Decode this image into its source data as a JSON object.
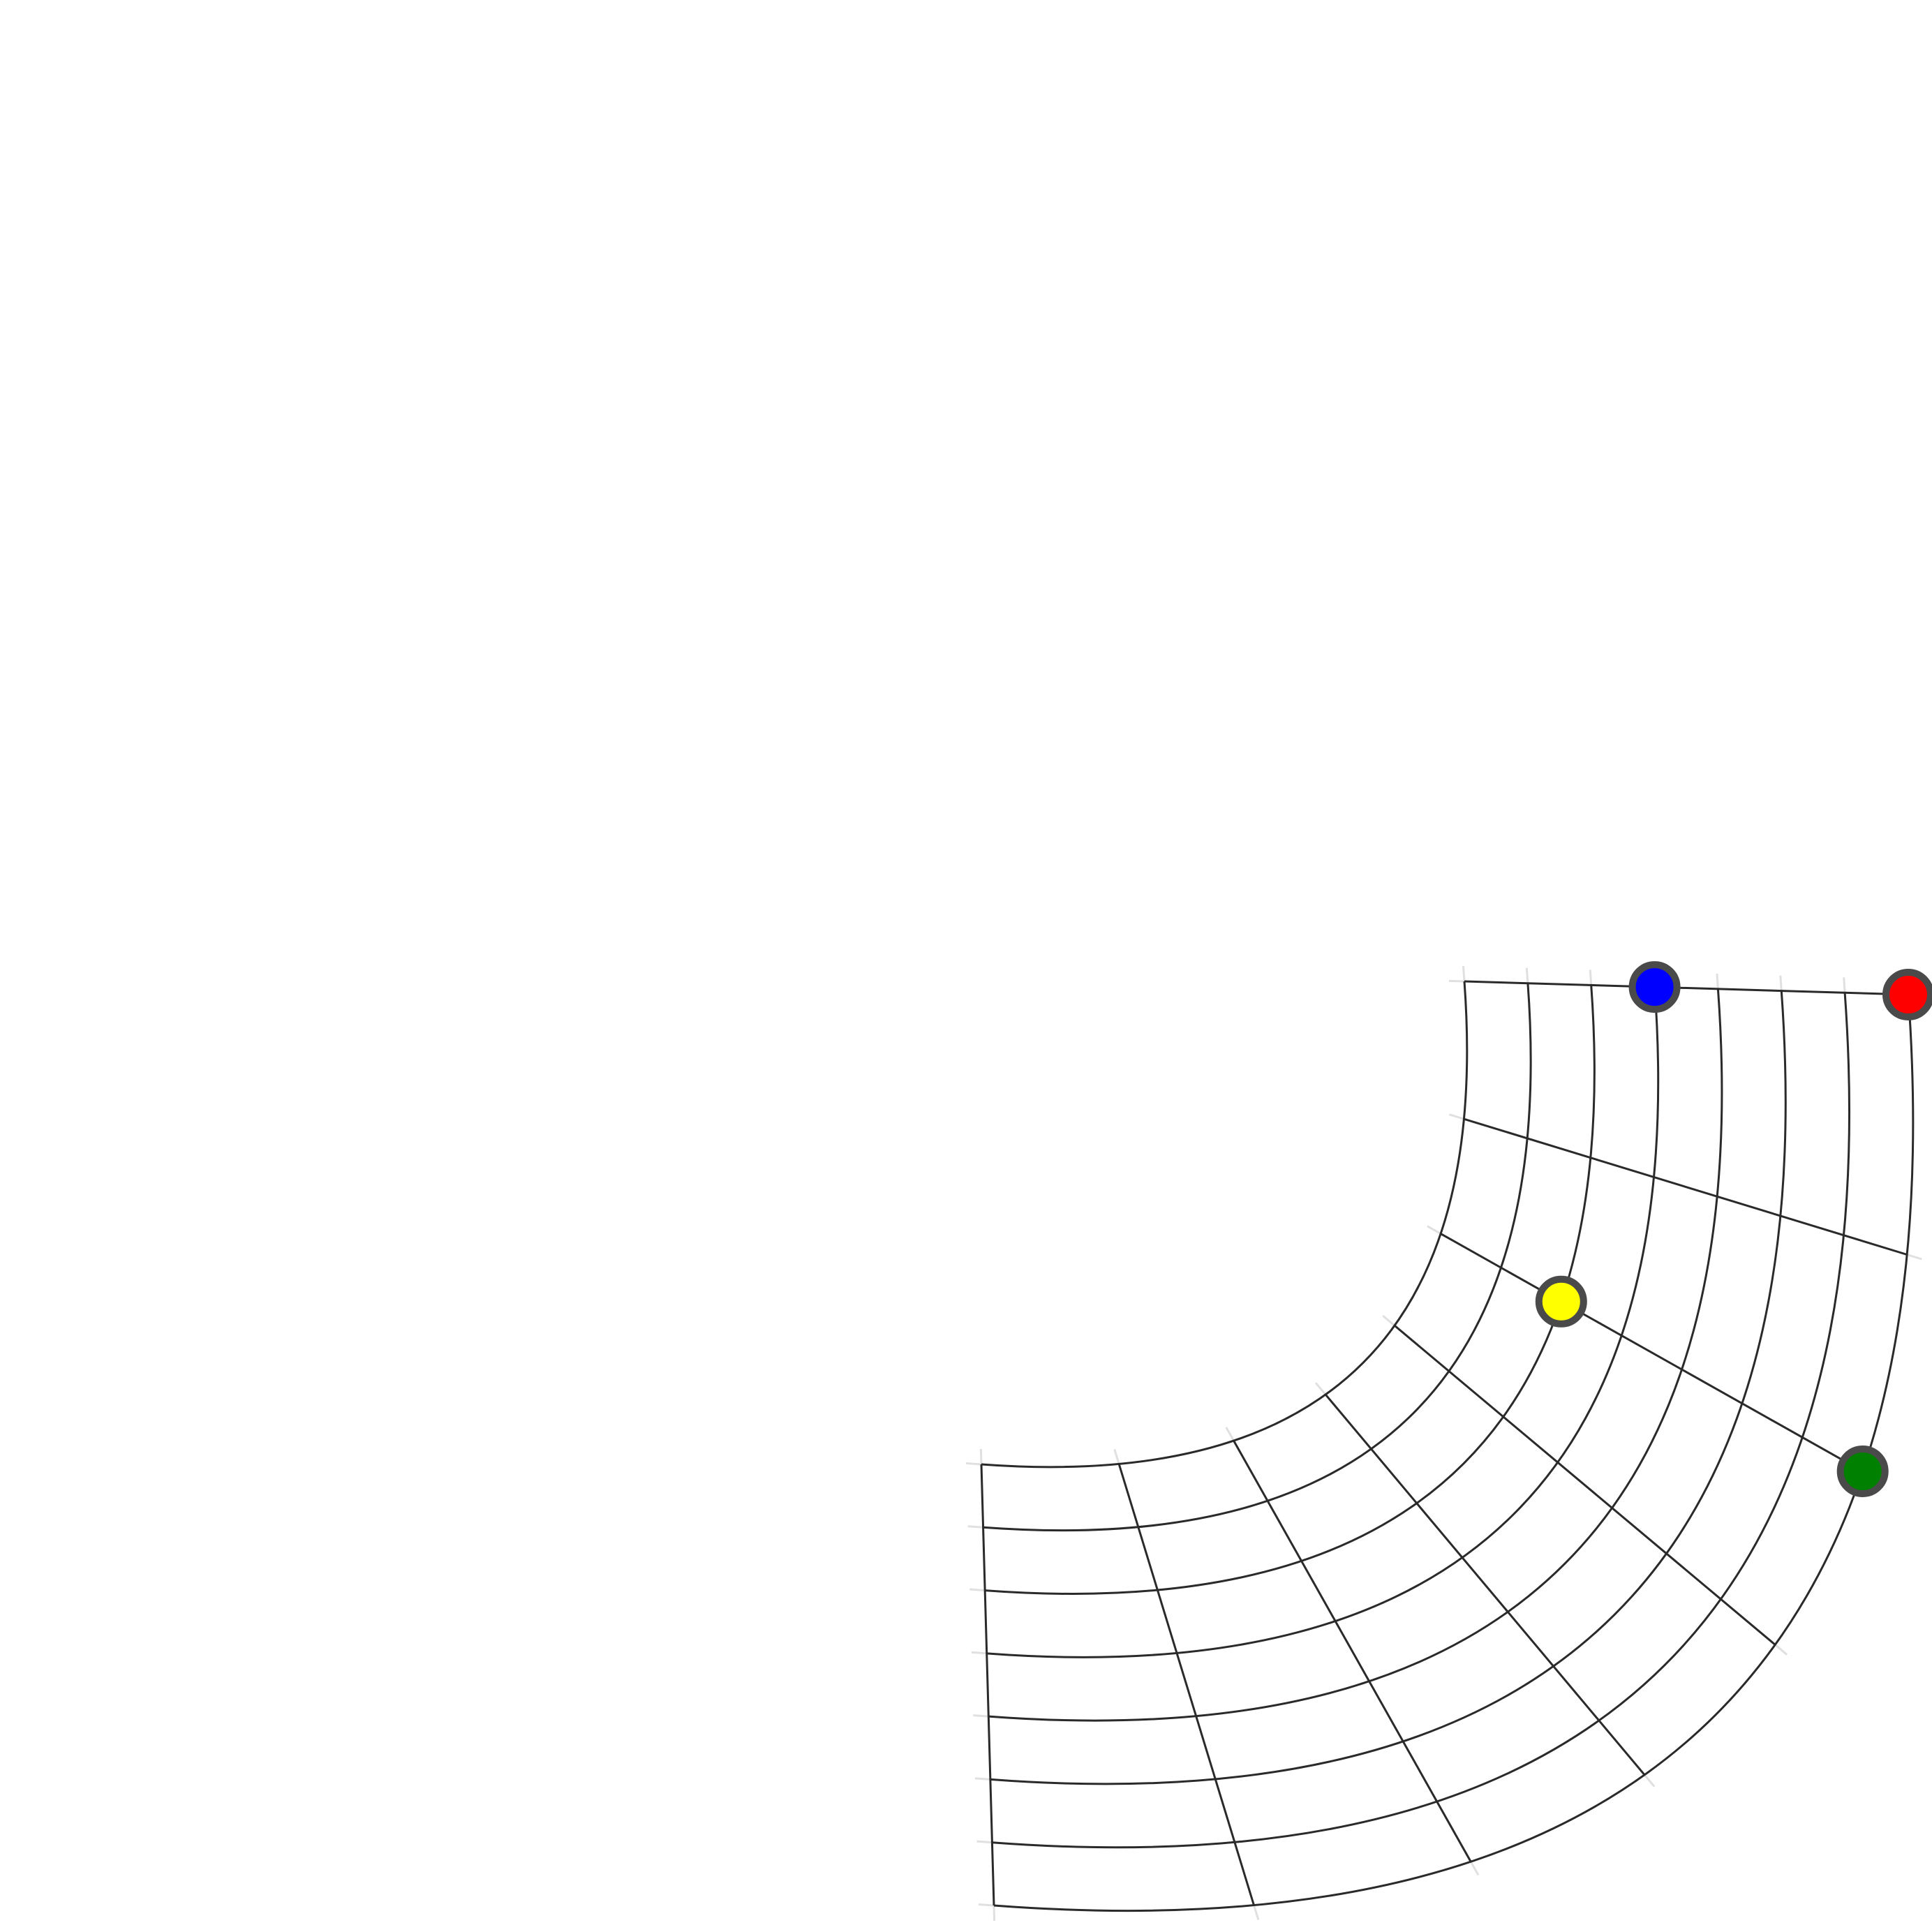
{
  "diagram": {
    "type": "polar-grid",
    "radial_divisions": 7,
    "angular_divisions": 7,
    "grid_color": "#2a2a2a",
    "tick_color": "#e0e0e0",
    "marker_stroke": "#4a4a4a",
    "markers": [
      {
        "name": "red-marker",
        "color": "#ff0000",
        "ring": 7,
        "spoke": 0
      },
      {
        "name": "blue-marker",
        "color": "#0000ff",
        "ring": 3,
        "spoke": 0
      },
      {
        "name": "yellow-marker",
        "color": "#ffff00",
        "ring": 2,
        "spoke": 2
      },
      {
        "name": "green-marker",
        "color": "#008000",
        "ring": 7,
        "spoke": 2
      }
    ]
  }
}
